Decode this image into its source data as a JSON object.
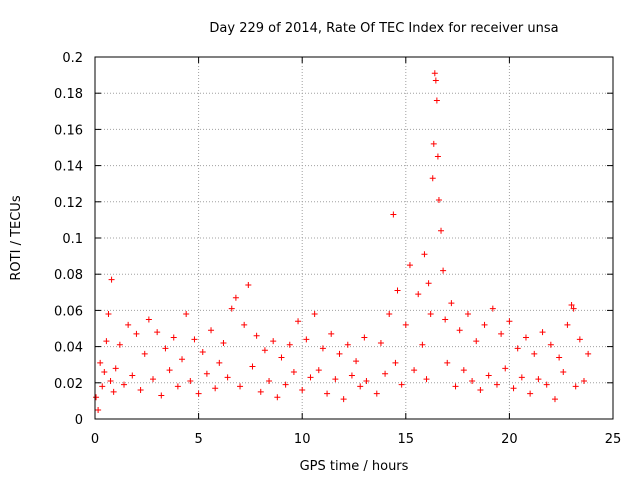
{
  "chart_data": {
    "type": "scatter",
    "title": "Day 229 of 2014, Rate Of TEC Index for receiver unsa",
    "xlabel": "GPS time / hours",
    "ylabel": "ROTI / TECUs",
    "xlim": [
      0,
      25
    ],
    "ylim": [
      0,
      0.2
    ],
    "xticks": [
      "0",
      "5",
      "10",
      "15",
      "20",
      "25"
    ],
    "yticks": [
      "0",
      "0.02",
      "0.04",
      "0.06",
      "0.08",
      "0.1",
      "0.12",
      "0.14",
      "0.16",
      "0.18",
      "0.2"
    ],
    "grid": true,
    "marker": "+",
    "color": "#ff0000",
    "series": [
      {
        "name": "ROTI",
        "points": [
          [
            0.05,
            0.012
          ],
          [
            0.15,
            0.005
          ],
          [
            0.25,
            0.031
          ],
          [
            0.35,
            0.018
          ],
          [
            0.45,
            0.026
          ],
          [
            0.55,
            0.043
          ],
          [
            0.65,
            0.058
          ],
          [
            0.75,
            0.021
          ],
          [
            0.8,
            0.077
          ],
          [
            0.9,
            0.015
          ],
          [
            1.0,
            0.028
          ],
          [
            1.2,
            0.041
          ],
          [
            1.4,
            0.019
          ],
          [
            1.6,
            0.052
          ],
          [
            1.8,
            0.024
          ],
          [
            2.0,
            0.047
          ],
          [
            2.2,
            0.016
          ],
          [
            2.4,
            0.036
          ],
          [
            2.6,
            0.055
          ],
          [
            2.8,
            0.022
          ],
          [
            3.0,
            0.048
          ],
          [
            3.2,
            0.013
          ],
          [
            3.4,
            0.039
          ],
          [
            3.6,
            0.027
          ],
          [
            3.8,
            0.045
          ],
          [
            4.0,
            0.018
          ],
          [
            4.2,
            0.033
          ],
          [
            4.4,
            0.058
          ],
          [
            4.6,
            0.021
          ],
          [
            4.8,
            0.044
          ],
          [
            5.0,
            0.014
          ],
          [
            5.2,
            0.037
          ],
          [
            5.4,
            0.025
          ],
          [
            5.6,
            0.049
          ],
          [
            5.8,
            0.017
          ],
          [
            6.0,
            0.031
          ],
          [
            6.2,
            0.042
          ],
          [
            6.4,
            0.023
          ],
          [
            6.6,
            0.061
          ],
          [
            6.8,
            0.067
          ],
          [
            7.0,
            0.018
          ],
          [
            7.2,
            0.052
          ],
          [
            7.4,
            0.074
          ],
          [
            7.6,
            0.029
          ],
          [
            7.8,
            0.046
          ],
          [
            8.0,
            0.015
          ],
          [
            8.2,
            0.038
          ],
          [
            8.4,
            0.021
          ],
          [
            8.6,
            0.043
          ],
          [
            8.8,
            0.012
          ],
          [
            9.0,
            0.034
          ],
          [
            9.2,
            0.019
          ],
          [
            9.4,
            0.041
          ],
          [
            9.6,
            0.026
          ],
          [
            9.8,
            0.054
          ],
          [
            10.0,
            0.016
          ],
          [
            10.2,
            0.044
          ],
          [
            10.4,
            0.023
          ],
          [
            10.6,
            0.058
          ],
          [
            10.8,
            0.027
          ],
          [
            11.0,
            0.039
          ],
          [
            11.2,
            0.014
          ],
          [
            11.4,
            0.047
          ],
          [
            11.6,
            0.022
          ],
          [
            11.8,
            0.036
          ],
          [
            12.0,
            0.011
          ],
          [
            12.2,
            0.041
          ],
          [
            12.4,
            0.024
          ],
          [
            12.6,
            0.032
          ],
          [
            12.8,
            0.018
          ],
          [
            13.0,
            0.045
          ],
          [
            13.1,
            0.021
          ],
          [
            13.6,
            0.014
          ],
          [
            13.8,
            0.042
          ],
          [
            14.0,
            0.025
          ],
          [
            14.2,
            0.058
          ],
          [
            14.4,
            0.113
          ],
          [
            14.5,
            0.031
          ],
          [
            14.6,
            0.071
          ],
          [
            14.8,
            0.019
          ],
          [
            15.0,
            0.052
          ],
          [
            15.2,
            0.085
          ],
          [
            15.4,
            0.027
          ],
          [
            15.6,
            0.069
          ],
          [
            15.8,
            0.041
          ],
          [
            15.9,
            0.091
          ],
          [
            16.0,
            0.022
          ],
          [
            16.1,
            0.075
          ],
          [
            16.2,
            0.058
          ],
          [
            16.3,
            0.133
          ],
          [
            16.35,
            0.152
          ],
          [
            16.4,
            0.191
          ],
          [
            16.45,
            0.187
          ],
          [
            16.5,
            0.176
          ],
          [
            16.55,
            0.145
          ],
          [
            16.6,
            0.121
          ],
          [
            16.7,
            0.104
          ],
          [
            16.8,
            0.082
          ],
          [
            16.9,
            0.055
          ],
          [
            17.0,
            0.031
          ],
          [
            17.2,
            0.064
          ],
          [
            17.4,
            0.018
          ],
          [
            17.6,
            0.049
          ],
          [
            17.8,
            0.027
          ],
          [
            18.0,
            0.058
          ],
          [
            18.2,
            0.021
          ],
          [
            18.4,
            0.043
          ],
          [
            18.6,
            0.016
          ],
          [
            18.8,
            0.052
          ],
          [
            19.0,
            0.024
          ],
          [
            19.2,
            0.061
          ],
          [
            19.4,
            0.019
          ],
          [
            19.6,
            0.047
          ],
          [
            19.8,
            0.028
          ],
          [
            20.0,
            0.054
          ],
          [
            20.2,
            0.017
          ],
          [
            20.4,
            0.039
          ],
          [
            20.6,
            0.023
          ],
          [
            20.8,
            0.045
          ],
          [
            21.0,
            0.014
          ],
          [
            21.2,
            0.036
          ],
          [
            21.4,
            0.022
          ],
          [
            21.6,
            0.048
          ],
          [
            21.8,
            0.019
          ],
          [
            22.0,
            0.041
          ],
          [
            22.2,
            0.011
          ],
          [
            22.4,
            0.034
          ],
          [
            22.6,
            0.026
          ],
          [
            22.8,
            0.052
          ],
          [
            23.0,
            0.063
          ],
          [
            23.1,
            0.061
          ],
          [
            23.2,
            0.018
          ],
          [
            23.4,
            0.044
          ],
          [
            23.6,
            0.021
          ],
          [
            23.8,
            0.036
          ]
        ]
      }
    ]
  }
}
